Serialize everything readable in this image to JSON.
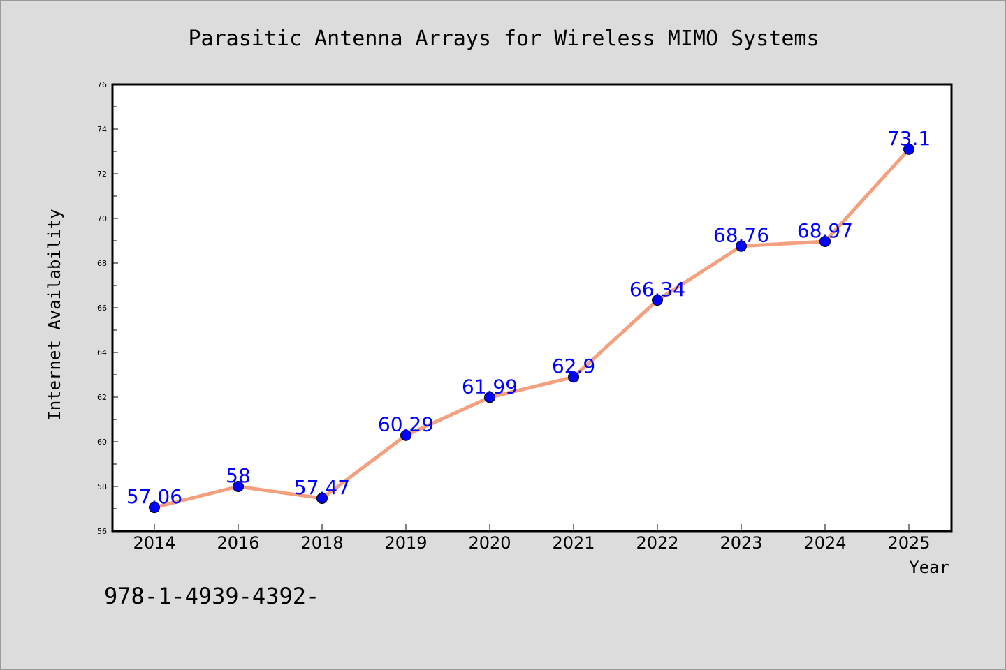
{
  "chart_data": {
    "type": "line",
    "title": "Parasitic Antenna Arrays for Wireless MIMO Systems",
    "xlabel": "Year",
    "ylabel": "Internet Availability",
    "categories": [
      "2014",
      "2016",
      "2018",
      "2019",
      "2020",
      "2021",
      "2022",
      "2023",
      "2024",
      "2025"
    ],
    "values": [
      57.06,
      58,
      57.47,
      60.29,
      61.99,
      62.9,
      66.34,
      68.76,
      68.97,
      73.1
    ],
    "data_labels": [
      "57.06",
      "58",
      "57.47",
      "60.29",
      "61.99",
      "62.9",
      "66.34",
      "68.76",
      "68.97",
      "73.1"
    ],
    "ylim": [
      56,
      76
    ],
    "yticks": [
      "56",
      "58",
      "60",
      "62",
      "64",
      "66",
      "68",
      "70",
      "72",
      "74",
      "76"
    ],
    "grid": false,
    "colors": {
      "line": "#f4a07e",
      "marker": "#0000ff",
      "label": "#0000ff",
      "background": "#dcdcdc",
      "plot_area": "#ffffff"
    }
  },
  "footer": {
    "code": "978-1-4939-4392-"
  }
}
